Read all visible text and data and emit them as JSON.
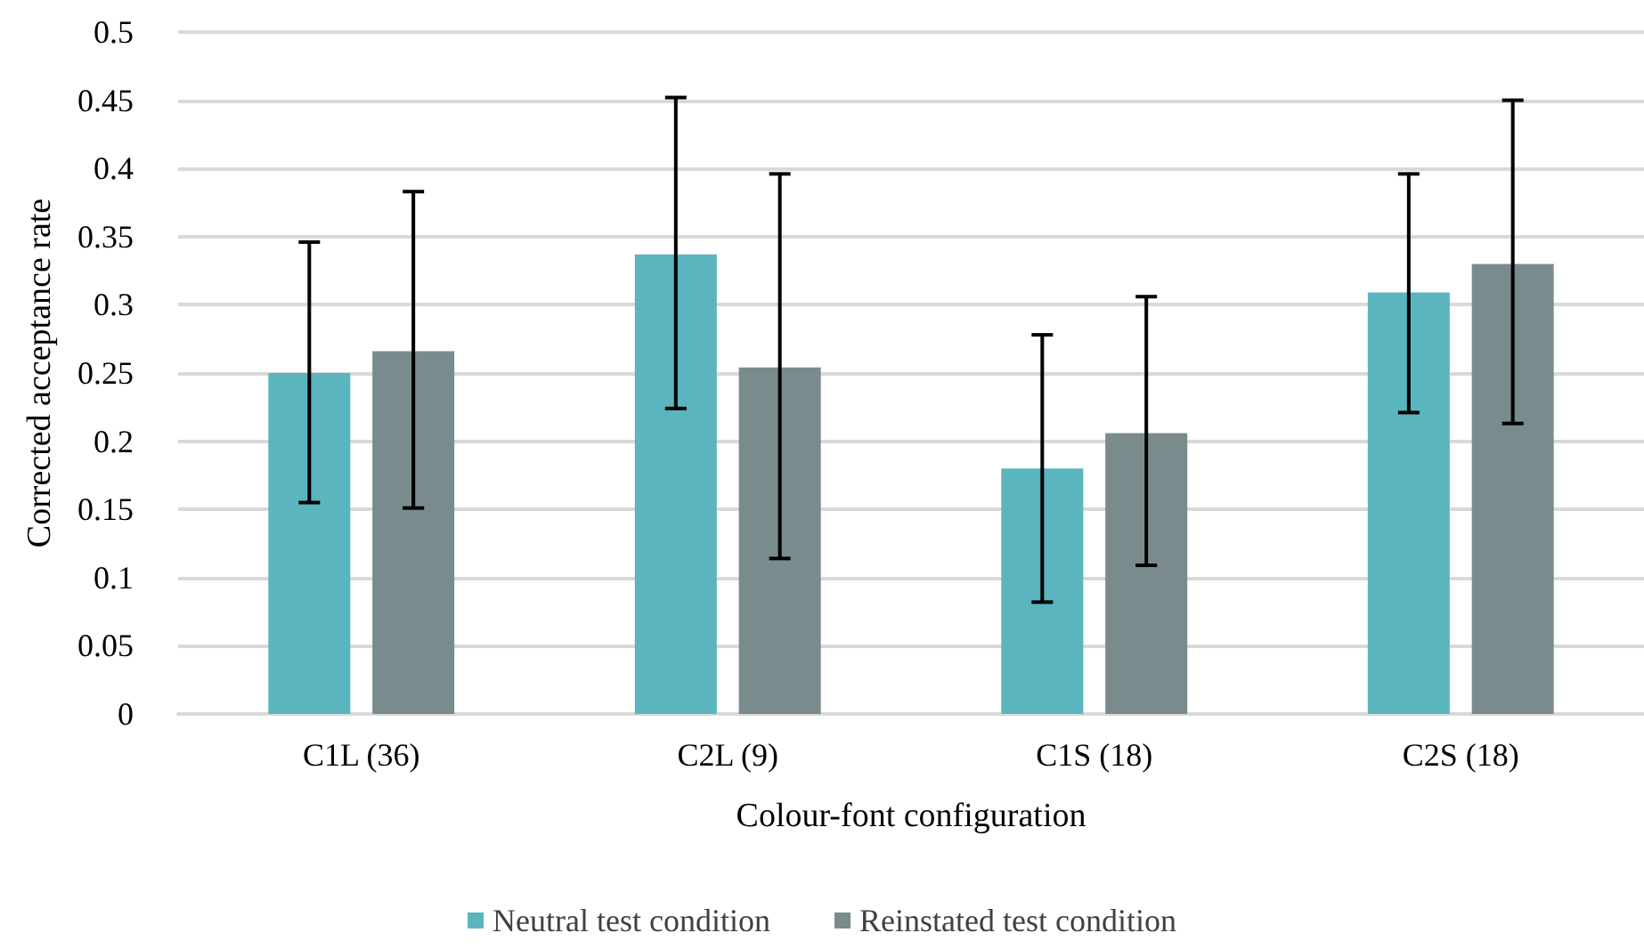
{
  "chart_data": {
    "type": "bar",
    "xlabel": "Colour-font configuration",
    "ylabel": "Corrected acceptance rate",
    "categories": [
      "C1L (36)",
      "C2L (9)",
      "C1S (18)",
      "C2S (18)"
    ],
    "series": [
      {
        "name": "Neutral test condition",
        "color": "#5ab5bf",
        "values": [
          0.25,
          0.337,
          0.18,
          0.309
        ],
        "errors": [
          [
            0.155,
            0.346
          ],
          [
            0.224,
            0.452
          ],
          [
            0.082,
            0.278
          ],
          [
            0.221,
            0.396
          ]
        ]
      },
      {
        "name": "Reinstated test condition",
        "color": "#7a8b8d",
        "values": [
          0.266,
          0.254,
          0.206,
          0.33
        ],
        "errors": [
          [
            0.151,
            0.383
          ],
          [
            0.114,
            0.396
          ],
          [
            0.109,
            0.306
          ],
          [
            0.213,
            0.45
          ]
        ]
      }
    ],
    "ylim": [
      0,
      0.5
    ],
    "yticks": [
      0,
      0.05,
      0.1,
      0.15,
      0.2,
      0.25,
      0.3,
      0.35,
      0.4,
      0.45,
      0.5
    ],
    "grid": "y",
    "legend": "bottom"
  }
}
